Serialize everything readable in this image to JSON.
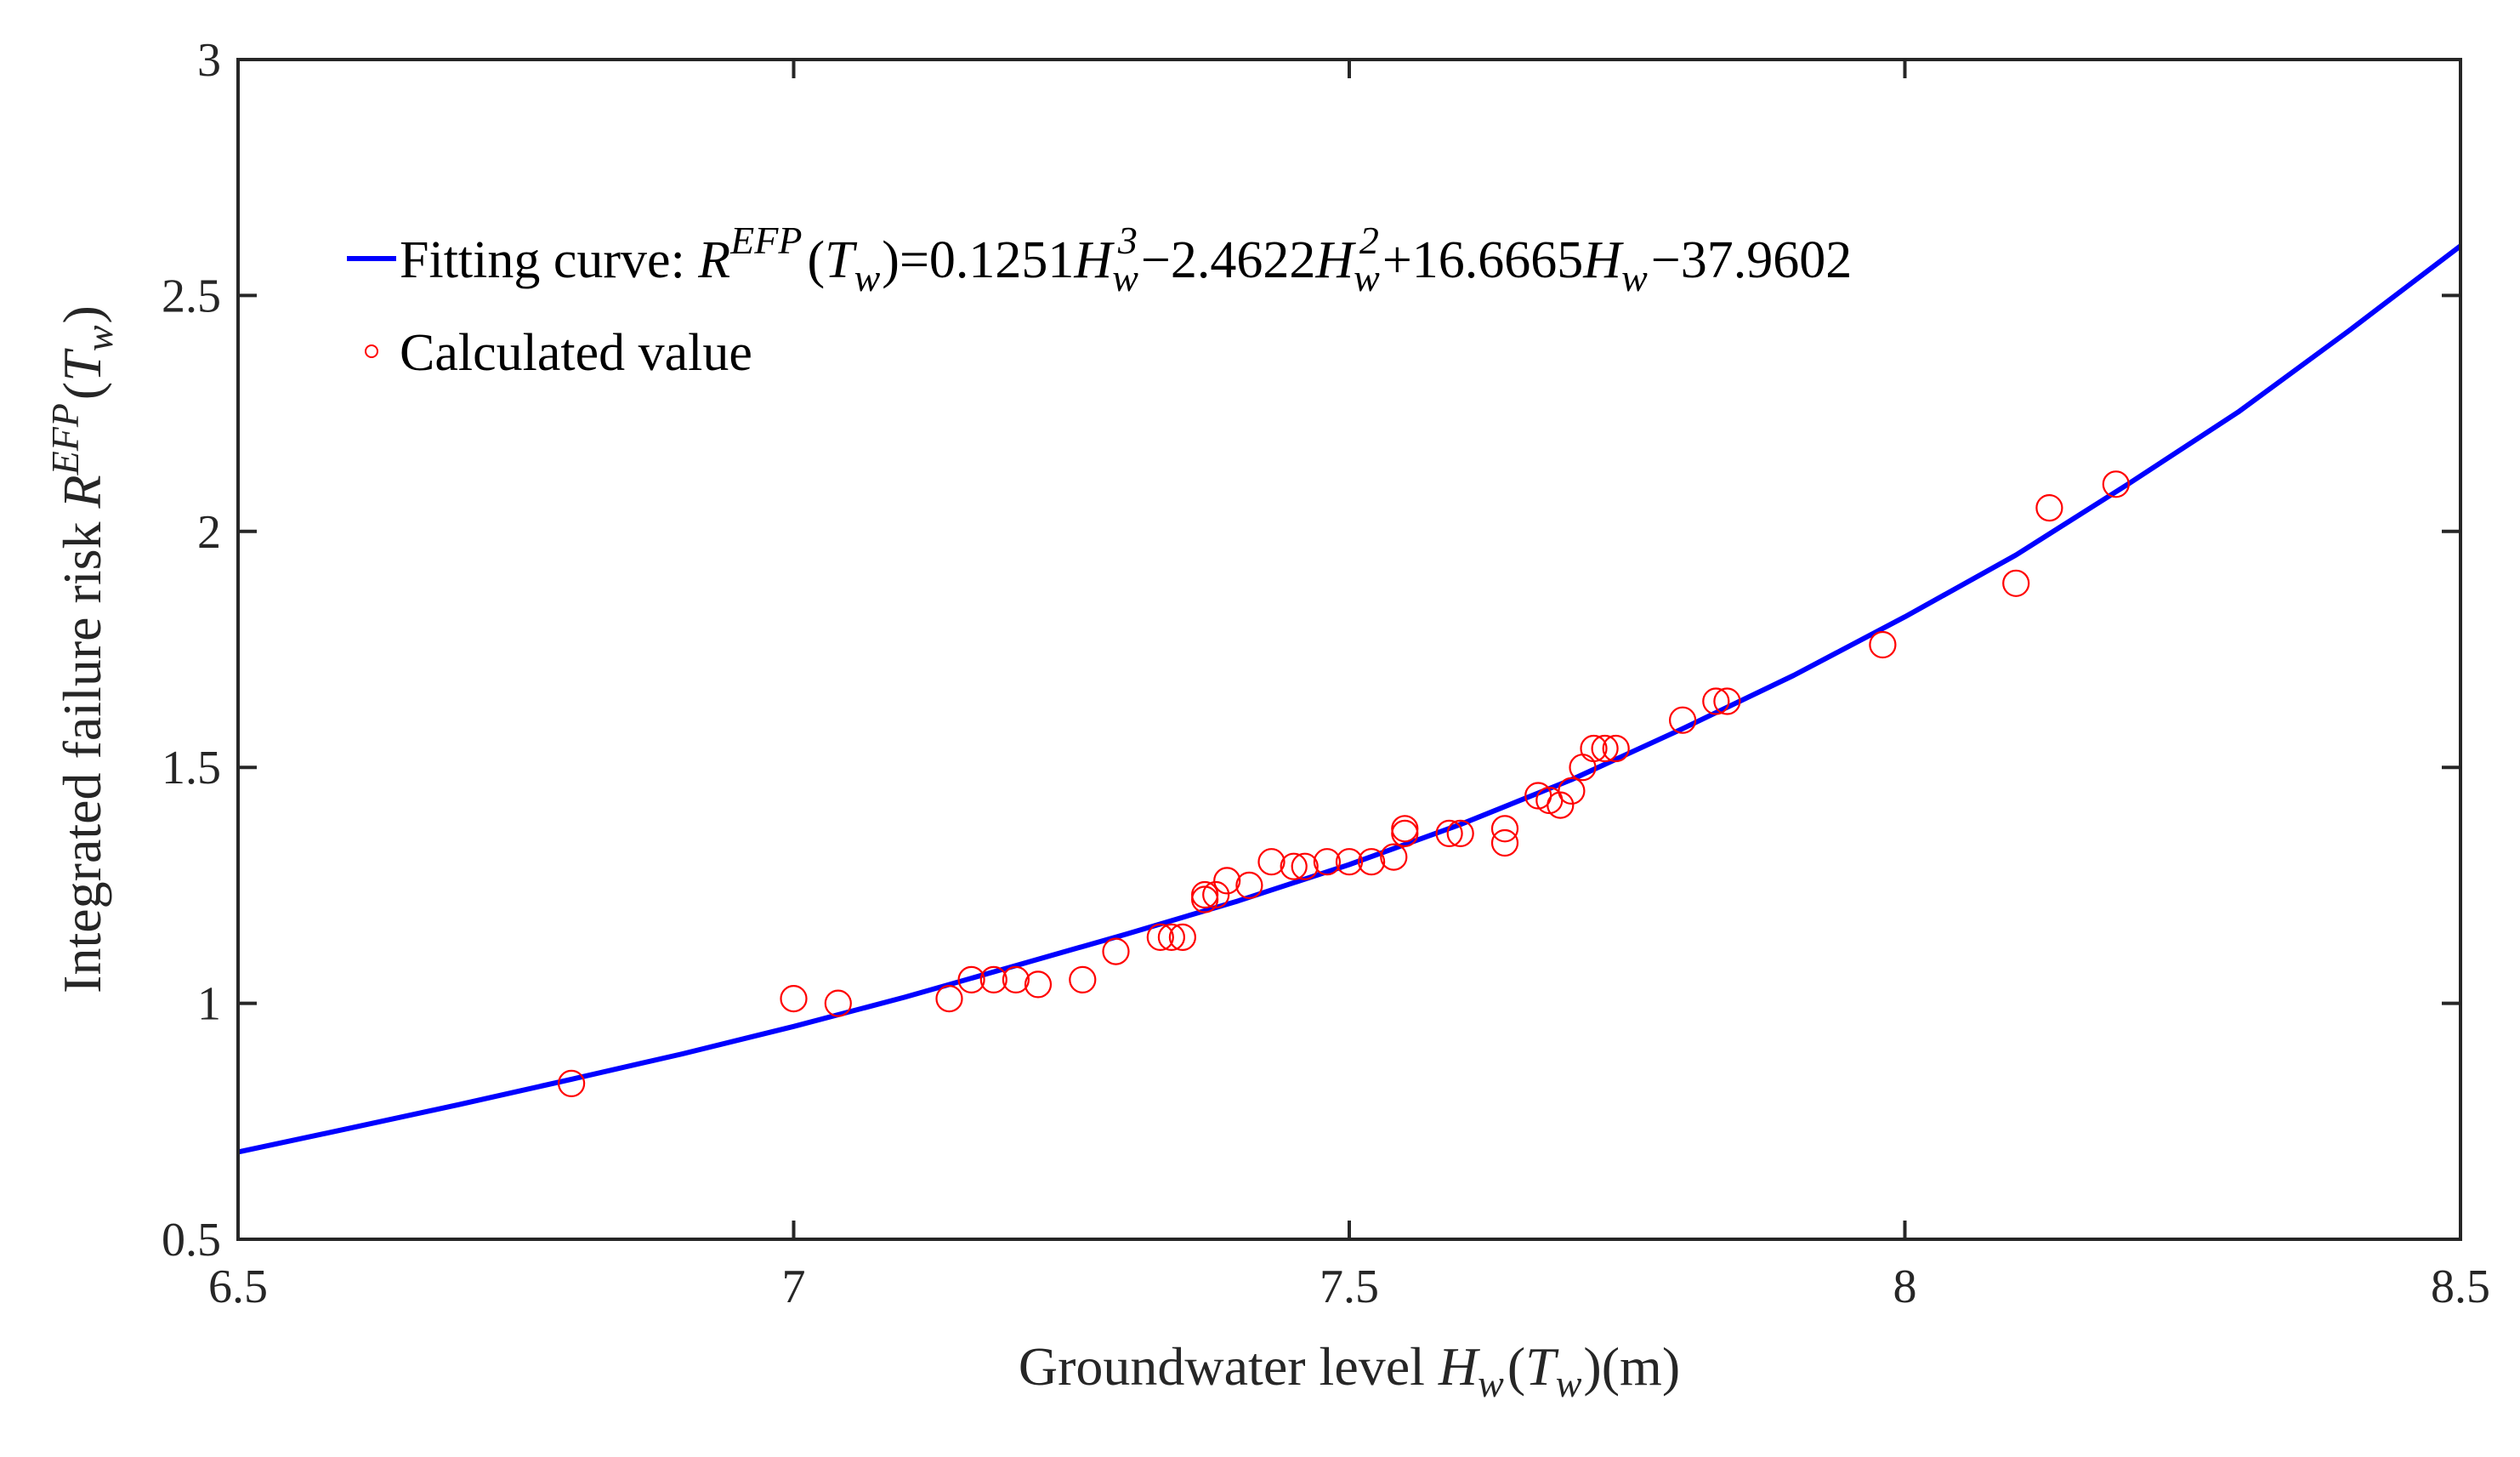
{
  "chart_data": {
    "type": "line",
    "title": "",
    "xlabel": {
      "main": "Groundwater level ",
      "var": "H",
      "var_sub": "w",
      "paren_open": "(",
      "arg": "T",
      "arg_sub": "w",
      "paren_close": ")",
      "unit": "(m)"
    },
    "ylabel": {
      "main": "Integrated failure risk ",
      "var": "R",
      "var_sup": "EFP",
      "paren_open": "(",
      "arg": "T",
      "arg_sub": "w",
      "paren_close": ")"
    },
    "xlim": [
      6.5,
      8.5
    ],
    "ylim": [
      0.5,
      3
    ],
    "xticks": [
      6.5,
      7,
      7.5,
      8,
      8.5
    ],
    "xtick_labels": [
      "6.5",
      "7",
      "7.5",
      "8",
      "8.5"
    ],
    "yticks": [
      0.5,
      1,
      1.5,
      2,
      2.5,
      3
    ],
    "ytick_labels": [
      "0.5",
      "1",
      "1.5",
      "2",
      "2.5",
      "3"
    ],
    "grid": false,
    "legend_position": "top-left",
    "series": [
      {
        "kind": "line",
        "color": "#0000ff",
        "legend": {
          "prefix": "Fitting curve: ",
          "r": "R",
          "r_sup": "EFP",
          "p1": "(",
          "t": "T",
          "t_sub": "w",
          "p2": ")=0.1251",
          "h3": "H",
          "h3_sub": "w",
          "h3_sup": "3",
          "m1": "−2.4622",
          "h2": "H",
          "h2_sub": "w",
          "h2_sup": "2",
          "m2": "+16.6665",
          "h1": "H",
          "h1_sub": "w",
          "m3": "−37.9602"
        },
        "x": [
          6.5,
          6.6,
          6.7,
          6.8,
          6.9,
          7.0,
          7.1,
          7.2,
          7.3,
          7.4,
          7.5,
          7.6,
          7.7,
          7.8,
          7.9,
          8.0,
          8.1,
          8.2,
          8.3,
          8.4,
          8.5
        ],
        "y": [
          0.685,
          0.735,
          0.786,
          0.839,
          0.893,
          0.951,
          1.013,
          1.08,
          1.147,
          1.217,
          1.294,
          1.379,
          1.474,
          1.582,
          1.695,
          1.819,
          1.95,
          2.099,
          2.253,
          2.426,
          2.605
        ]
      },
      {
        "kind": "scatter",
        "color": "#ff0000",
        "name": "Calculated value",
        "points": [
          [
            6.8,
            0.83
          ],
          [
            7.0,
            1.01
          ],
          [
            7.04,
            1.0
          ],
          [
            7.14,
            1.01
          ],
          [
            7.16,
            1.05
          ],
          [
            7.18,
            1.05
          ],
          [
            7.2,
            1.05
          ],
          [
            7.22,
            1.04
          ],
          [
            7.26,
            1.05
          ],
          [
            7.29,
            1.11
          ],
          [
            7.33,
            1.14
          ],
          [
            7.34,
            1.14
          ],
          [
            7.35,
            1.14
          ],
          [
            7.37,
            1.22
          ],
          [
            7.37,
            1.23
          ],
          [
            7.38,
            1.23
          ],
          [
            7.39,
            1.26
          ],
          [
            7.41,
            1.25
          ],
          [
            7.43,
            1.3
          ],
          [
            7.45,
            1.29
          ],
          [
            7.46,
            1.29
          ],
          [
            7.48,
            1.3
          ],
          [
            7.5,
            1.3
          ],
          [
            7.52,
            1.3
          ],
          [
            7.54,
            1.31
          ],
          [
            7.55,
            1.37
          ],
          [
            7.55,
            1.36
          ],
          [
            7.59,
            1.36
          ],
          [
            7.6,
            1.36
          ],
          [
            7.64,
            1.34
          ],
          [
            7.64,
            1.37
          ],
          [
            7.67,
            1.44
          ],
          [
            7.68,
            1.43
          ],
          [
            7.69,
            1.42
          ],
          [
            7.7,
            1.45
          ],
          [
            7.71,
            1.5
          ],
          [
            7.72,
            1.54
          ],
          [
            7.73,
            1.54
          ],
          [
            7.74,
            1.54
          ],
          [
            7.8,
            1.6
          ],
          [
            7.83,
            1.64
          ],
          [
            7.84,
            1.64
          ],
          [
            7.98,
            1.76
          ],
          [
            8.1,
            1.89
          ],
          [
            8.13,
            2.05
          ],
          [
            8.19,
            2.1
          ]
        ]
      }
    ]
  }
}
